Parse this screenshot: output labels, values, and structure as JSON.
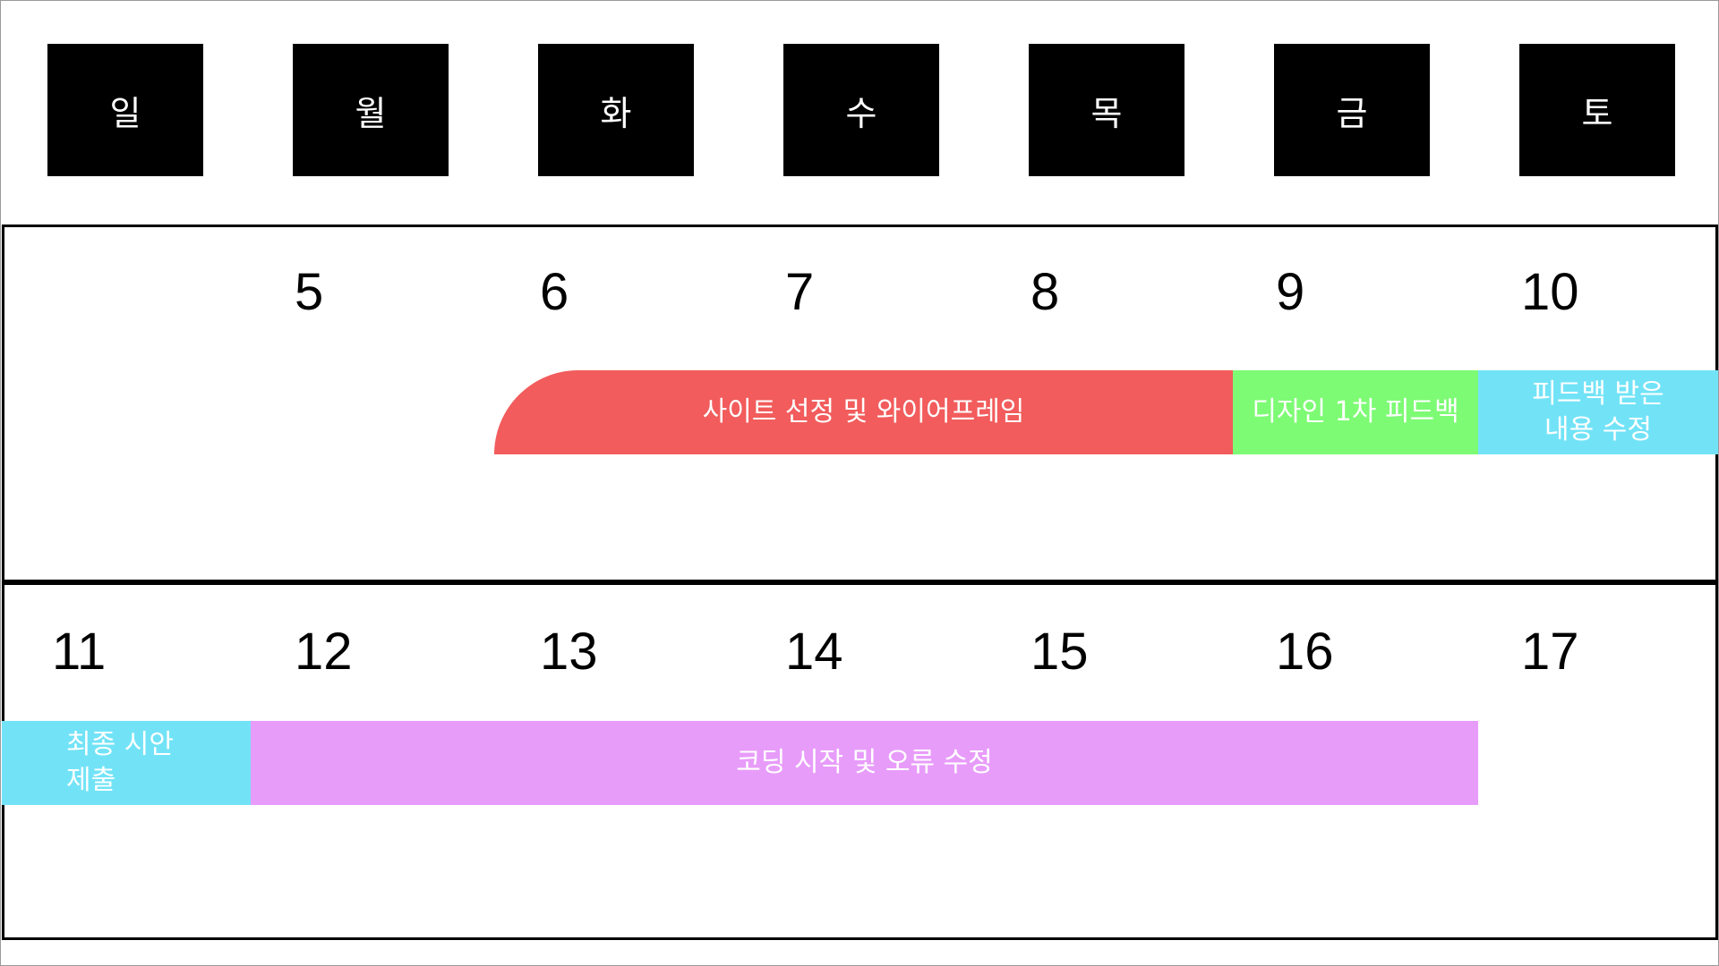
{
  "weekdays": [
    "일",
    "월",
    "화",
    "수",
    "목",
    "금",
    "토"
  ],
  "weeks": [
    {
      "dates": [
        "",
        "5",
        "6",
        "7",
        "8",
        "9",
        "10"
      ],
      "events": [
        {
          "label": "사이트 선정 및 와이어프레임",
          "color": "#f25c5c"
        },
        {
          "label": "디자인 1차 피드백",
          "color": "#7dfb74"
        },
        {
          "label": "피드백 받은\n내용 수정",
          "color": "#72e3f7"
        }
      ]
    },
    {
      "dates": [
        "11",
        "12",
        "13",
        "14",
        "15",
        "16",
        "17"
      ],
      "events": [
        {
          "label": "최종 시안\n제출",
          "color": "#72e3f7"
        },
        {
          "label": "코딩 시작 및 오류 수정",
          "color": "#e89cfa"
        }
      ]
    }
  ]
}
